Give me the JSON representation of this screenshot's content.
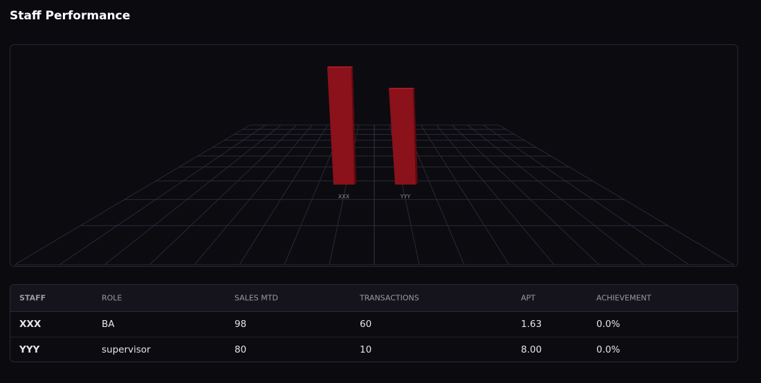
{
  "title": "Staff Performance",
  "chart_data": {
    "type": "bar3d",
    "categories": [
      "XXX",
      "YYY"
    ],
    "values": [
      98,
      80
    ],
    "color": "#8b111a"
  },
  "table": {
    "columns": [
      "STAFF",
      "ROLE",
      "SALES MTD",
      "TRANSACTIONS",
      "APT",
      "ACHIEVEMENT"
    ],
    "rows": [
      [
        "XXX",
        "BA",
        "98",
        "60",
        "1.63",
        "0.0%"
      ],
      [
        "YYY",
        "supervisor",
        "80",
        "10",
        "8.00",
        "0.0%"
      ]
    ]
  }
}
